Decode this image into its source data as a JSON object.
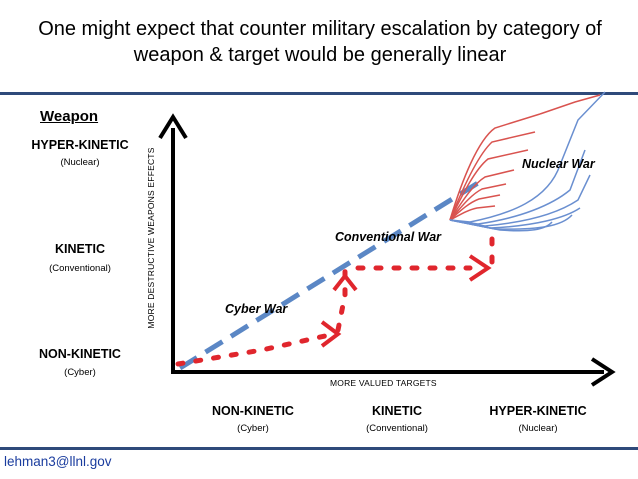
{
  "title": "One might expect that counter military escalation by category of weapon &  target would be generally linear",
  "weapon_heading": "Weapon",
  "y_axis_label": "MORE DESTRUCTIVE WEAPONS EFFECTS",
  "x_axis_label": "MORE VALUED TARGETS",
  "weapon_levels": [
    {
      "name": "HYPER-KINETIC",
      "sub": "(Nuclear)"
    },
    {
      "name": "KINETIC",
      "sub": "(Conventional)"
    },
    {
      "name": "NON-KINETIC",
      "sub": "(Cyber)"
    }
  ],
  "target_levels": [
    {
      "name": "NON-KINETIC",
      "sub": "(Cyber)"
    },
    {
      "name": "KINETIC",
      "sub": "(Conventional)"
    },
    {
      "name": "HYPER-KINETIC",
      "sub": "(Nuclear)"
    }
  ],
  "war_labels": {
    "cyber": "Cyber War",
    "conventional": "Conventional War",
    "nuclear": "Nuclear War"
  },
  "colors": {
    "title_rule": "#2f4a7a",
    "expected_line": "#5b87c5",
    "escalation_path": "#e0262d",
    "nuclear_red": "#d9534f",
    "nuclear_blue": "#6a8fd0",
    "email": "#1a3c9e"
  },
  "footer_email": "lehman3@llnl.gov"
}
